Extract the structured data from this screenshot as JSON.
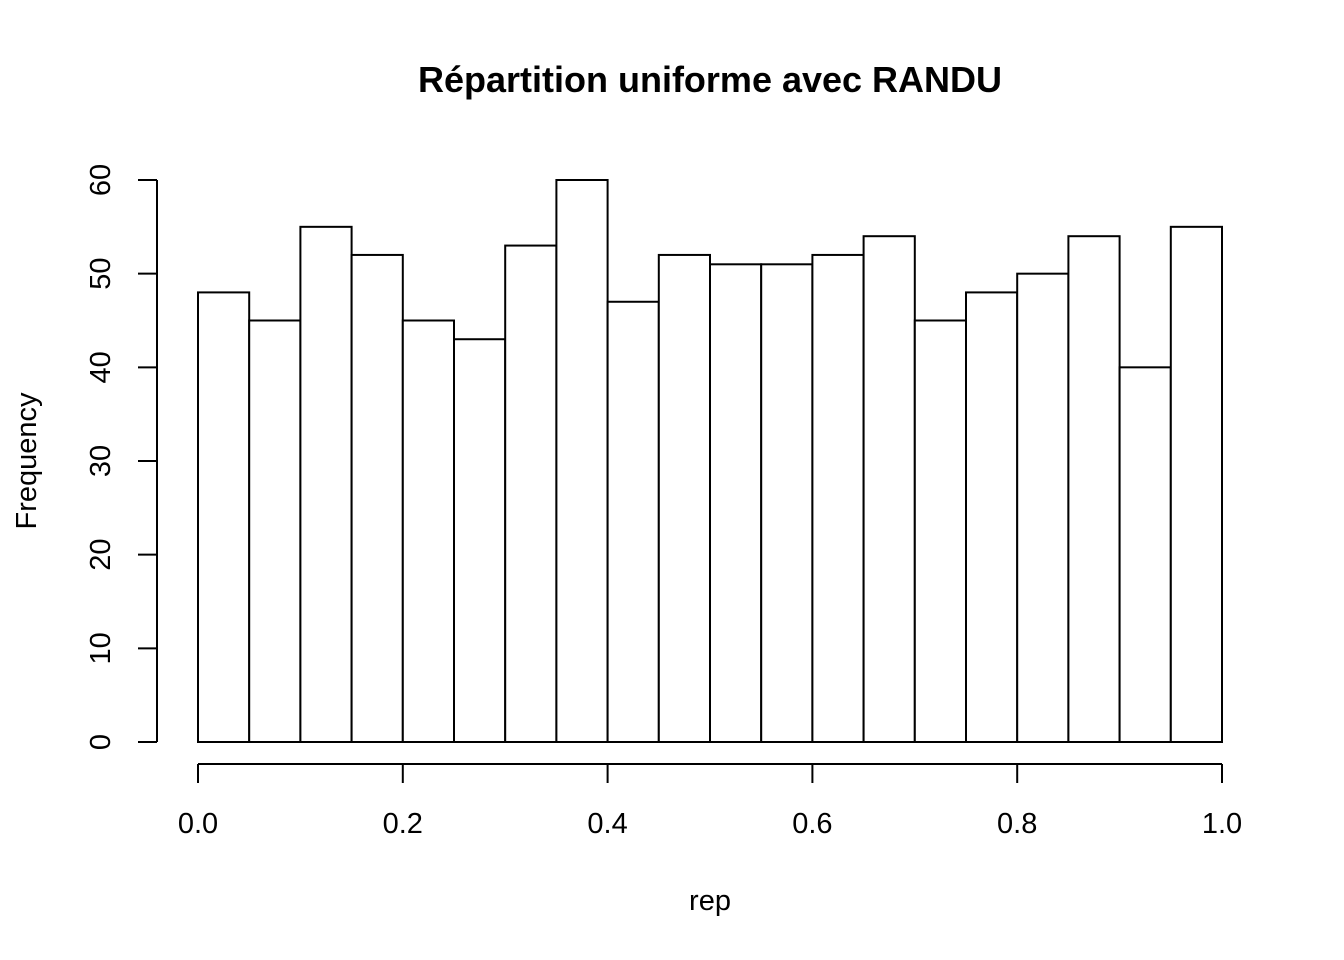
{
  "chart_data": {
    "type": "bar",
    "title": "Répartition uniforme avec RANDU",
    "xlabel": "rep",
    "ylabel": "Frequency",
    "bin_edges": [
      0.0,
      0.05,
      0.1,
      0.15,
      0.2,
      0.25,
      0.3,
      0.35,
      0.4,
      0.45,
      0.5,
      0.55,
      0.6,
      0.65,
      0.7,
      0.75,
      0.8,
      0.85,
      0.9,
      0.95,
      1.0
    ],
    "values": [
      48,
      45,
      55,
      52,
      45,
      43,
      53,
      60,
      47,
      52,
      51,
      51,
      52,
      54,
      45,
      48,
      50,
      54,
      40,
      55
    ],
    "xlim": [
      0,
      1
    ],
    "ylim": [
      0,
      60
    ],
    "x_ticks": [
      "0.0",
      "0.2",
      "0.4",
      "0.6",
      "0.8",
      "1.0"
    ],
    "x_tick_values": [
      0,
      0.2,
      0.4,
      0.6,
      0.8,
      1.0
    ],
    "y_ticks": [
      "0",
      "10",
      "20",
      "30",
      "40",
      "50",
      "60"
    ],
    "y_tick_values": [
      0,
      10,
      20,
      30,
      40,
      50,
      60
    ],
    "grid": false,
    "colors": {
      "bar_fill": "#ffffff",
      "bar_stroke": "#000000"
    }
  }
}
